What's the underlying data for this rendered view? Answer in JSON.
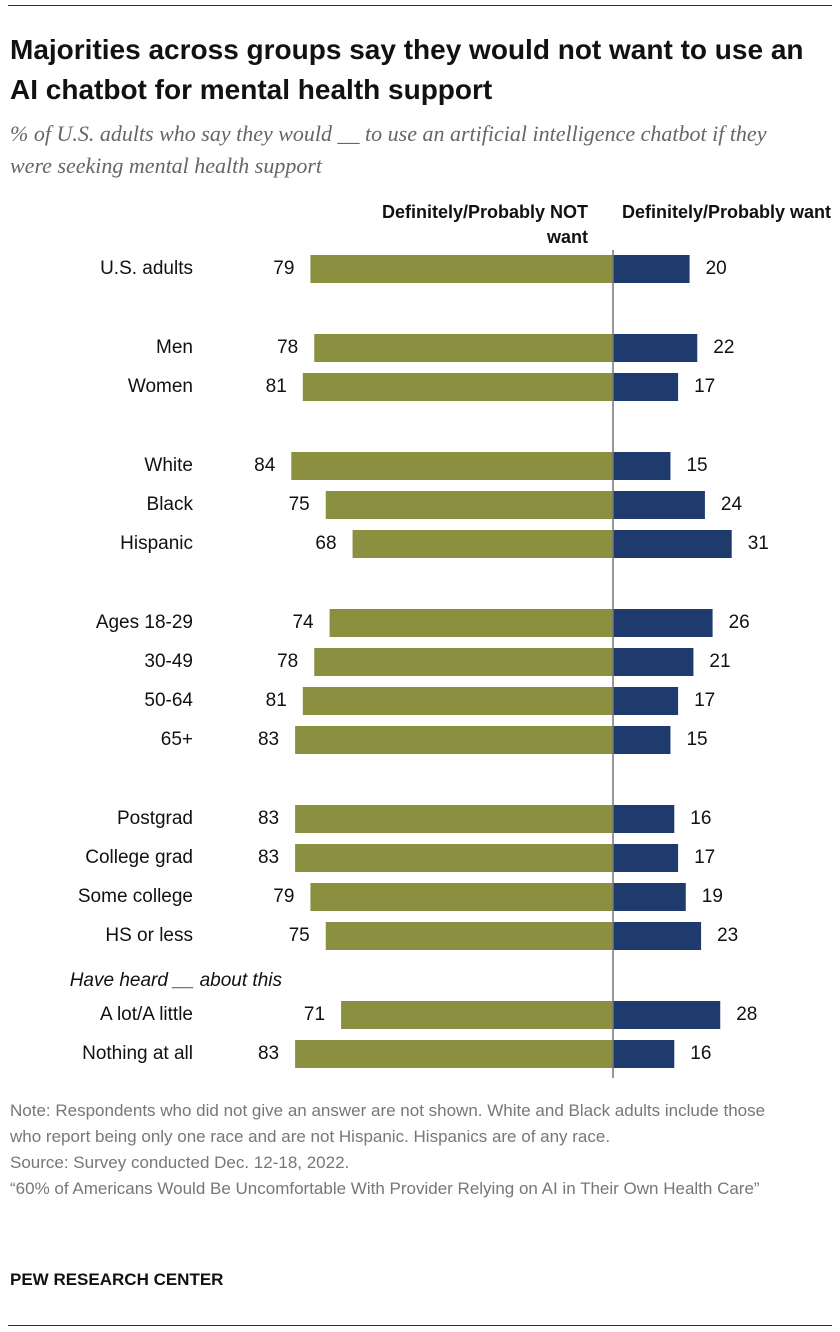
{
  "chart_data": {
    "type": "diverging_bar",
    "title": "Majorities across groups say they would not want to use an AI chatbot for mental health support",
    "subtitle": "% of U.S. adults who say they would __ to use an artificial intelligence chatbot if they were seeking mental health support",
    "categories": [
      "U.S. adults",
      "Men",
      "Women",
      "White",
      "Black",
      "Hispanic",
      "Ages 18-29",
      "30-49",
      "50-64",
      "65+",
      "Postgrad",
      "College grad",
      "Some college",
      "HS or less",
      "A lot/A little",
      "Nothing at all"
    ],
    "subheading": "Have heard __ about this",
    "series": [
      {
        "name": "Definitely/Probably NOT want",
        "color": "#8a9040",
        "direction": "left",
        "values": [
          79,
          78,
          81,
          84,
          75,
          68,
          74,
          78,
          81,
          83,
          83,
          83,
          79,
          75,
          71,
          83
        ]
      },
      {
        "name": "Definitely/Probably want",
        "color": "#1f3b6e",
        "direction": "right",
        "values": [
          20,
          22,
          17,
          15,
          24,
          31,
          26,
          21,
          17,
          15,
          16,
          17,
          19,
          23,
          28,
          16
        ]
      }
    ],
    "note": "Note: Respondents who did not give an answer are not shown. White and Black adults include those who report being only one race and are not Hispanic. Hispanics are of any race.",
    "source": "Source: Survey conducted Dec. 12-18, 2022.",
    "report": "“60% of Americans Would Be Uncomfortable With Provider Relying on AI in Their Own Health Care”",
    "credit": "PEW RESEARCH CENTER"
  }
}
